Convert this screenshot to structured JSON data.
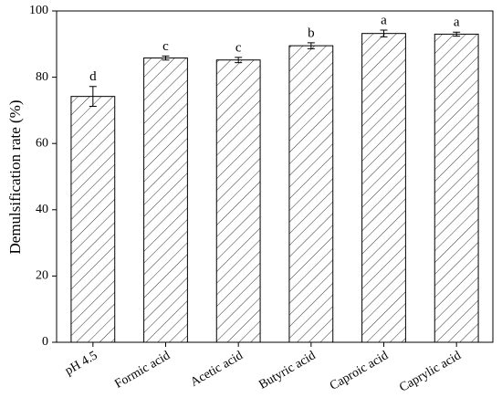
{
  "chart_data": {
    "type": "bar",
    "ylabel": "Demulsification rate (%)",
    "categories": [
      "pH 4.5",
      "Formic acid",
      "Acetic acid",
      "Butyric acid",
      "Caproic acid",
      "Caprylic acid"
    ],
    "values": [
      74.2,
      85.8,
      85.2,
      89.5,
      93.2,
      93.0
    ],
    "errors": [
      3.0,
      0.6,
      0.8,
      0.9,
      1.0,
      0.6
    ],
    "letters": [
      "d",
      "c",
      "c",
      "b",
      "a",
      "a"
    ],
    "color": "#000000",
    "ylim": [
      0,
      100
    ],
    "yticks": [
      0,
      20,
      40,
      60,
      80,
      100
    ],
    "grid": false
  }
}
